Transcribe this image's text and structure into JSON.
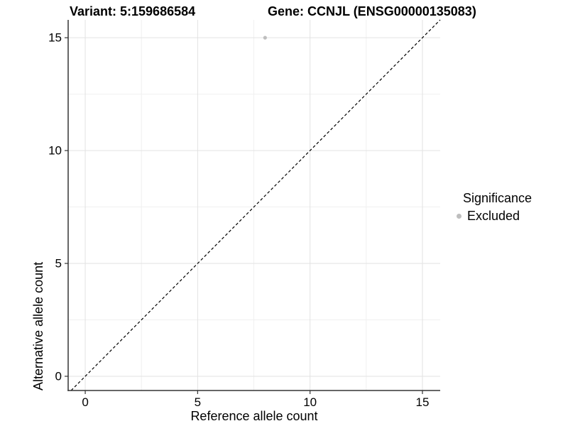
{
  "header": {
    "variant_title": "Variant: 5:159686584",
    "gene_title": "Gene: CCNJL (ENSG00000135083)"
  },
  "chart_data": {
    "type": "scatter",
    "xlabel": "Reference allele count",
    "ylabel": "Alternative allele count",
    "xlim": [
      -0.76,
      15.79
    ],
    "ylim": [
      -0.63,
      15.79
    ],
    "xticks": [
      0,
      5,
      10,
      15
    ],
    "yticks": [
      0,
      5,
      10,
      15
    ],
    "xticks_minor": [
      2.5,
      7.5,
      12.5
    ],
    "yticks_minor": [
      2.5,
      7.5,
      12.5
    ],
    "grid": true,
    "identity_line": {
      "slope": 1,
      "intercept": 0,
      "style": "dashed",
      "color": "#000000"
    },
    "series": [
      {
        "name": "Excluded",
        "color": "#bebebe",
        "points": [
          {
            "x": 8,
            "y": 15
          }
        ]
      }
    ],
    "legend_position": "right"
  },
  "legend": {
    "title": "Significance",
    "items": [
      {
        "label": "Excluded",
        "color": "#bebebe"
      }
    ]
  },
  "colors": {
    "grid_major": "#e2e2e2",
    "grid_minor": "#f0f0f0",
    "axis_line": "#333333",
    "tick": "#333333",
    "text": "#000000"
  }
}
